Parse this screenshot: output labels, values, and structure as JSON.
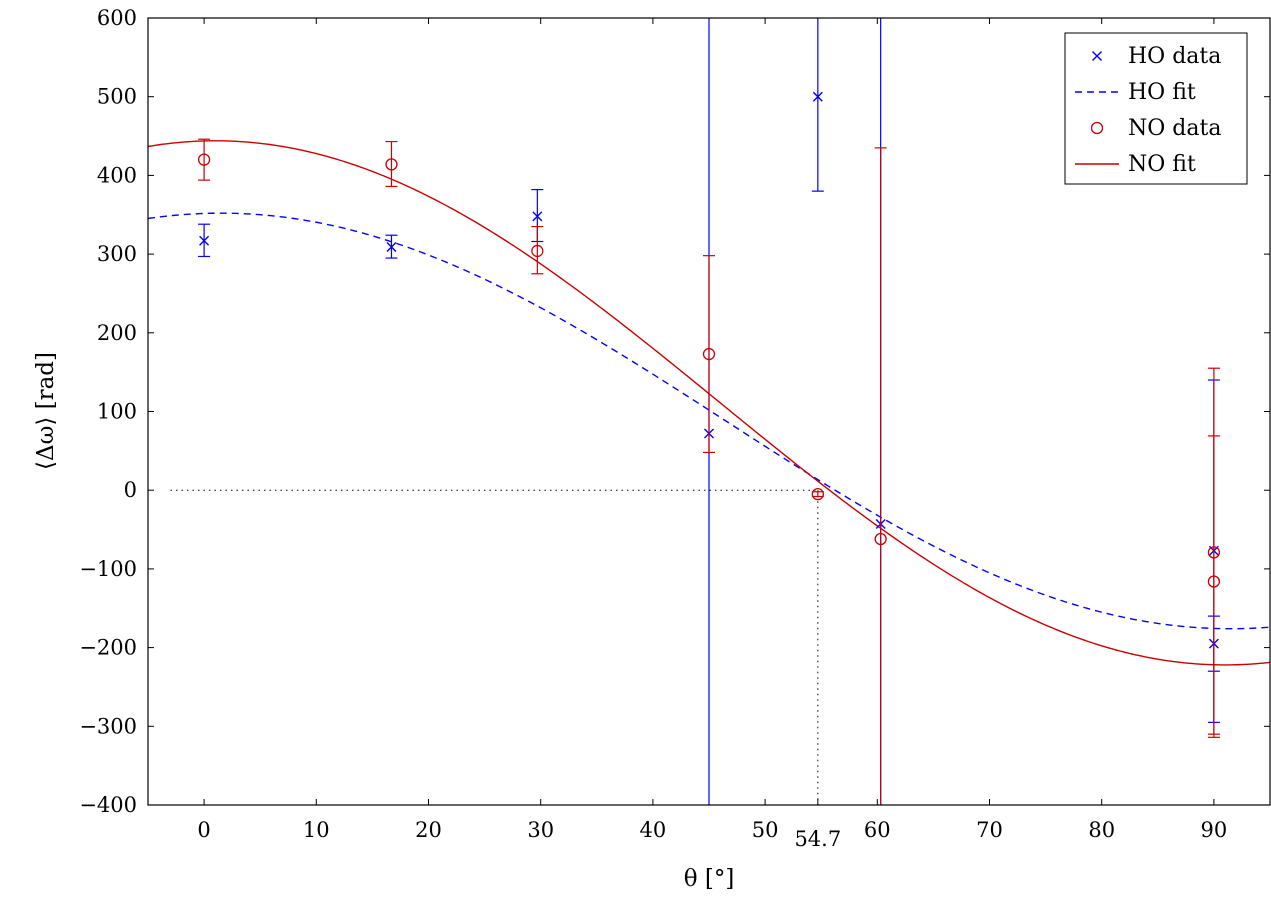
{
  "chart_data": {
    "type": "scatter",
    "xlabel": "θ [°]",
    "ylabel": "⟨Δω⟩ [rad]",
    "xlim": [
      -5,
      95
    ],
    "ylim": [
      -400,
      600
    ],
    "x_ticks": [
      "0",
      "10",
      "20",
      "30",
      "40",
      "50",
      "60",
      "70",
      "80",
      "90"
    ],
    "extra_x_tick": "54.7",
    "y_ticks": [
      "−400",
      "−300",
      "−200",
      "−100",
      "0",
      "100",
      "200",
      "300",
      "400",
      "500",
      "600"
    ],
    "grid": false,
    "legend_position": "top-right",
    "reference_lines": {
      "y_zero_until_x": 54.7,
      "x_magic_angle": 54.7
    },
    "series": [
      {
        "name": "HO data",
        "kind": "data",
        "marker": "cross",
        "color": "#0000ff",
        "points": [
          {
            "x": 0,
            "y": 317,
            "ylow": 297,
            "yhigh": 338
          },
          {
            "x": 16.7,
            "y": 309,
            "ylow": 295,
            "yhigh": 324
          },
          {
            "x": 29.7,
            "y": 348,
            "ylow": 316,
            "yhigh": 382
          },
          {
            "x": 45,
            "y": 72,
            "ylow": -400,
            "yhigh": 600
          },
          {
            "x": 54.7,
            "y": 500,
            "ylow": 380,
            "yhigh": 600
          },
          {
            "x": 60.3,
            "y": -43,
            "ylow": -400,
            "yhigh": 600
          },
          {
            "x": 90,
            "y": -77,
            "ylow": -295,
            "yhigh": 140
          },
          {
            "x": 90,
            "y": -195,
            "ylow": -230,
            "yhigh": -160
          }
        ]
      },
      {
        "name": "HO fit",
        "kind": "fit",
        "style": "dashed",
        "color": "#0000ff",
        "model": "A + B*cos(2*(θ−θ0))",
        "params": {
          "A": 88,
          "B": 264,
          "theta0": 1.5
        }
      },
      {
        "name": "NO data",
        "kind": "data",
        "marker": "circle",
        "color": "#cc0000",
        "points": [
          {
            "x": 0,
            "y": 420,
            "ylow": 394,
            "yhigh": 446
          },
          {
            "x": 16.7,
            "y": 414,
            "ylow": 386,
            "yhigh": 443
          },
          {
            "x": 29.7,
            "y": 304,
            "ylow": 275,
            "yhigh": 335
          },
          {
            "x": 45,
            "y": 173,
            "ylow": 48,
            "yhigh": 298
          },
          {
            "x": 54.7,
            "y": -5,
            "ylow": -8,
            "yhigh": -2
          },
          {
            "x": 60.3,
            "y": -62,
            "ylow": -400,
            "yhigh": 435
          },
          {
            "x": 90,
            "y": -79,
            "ylow": -310,
            "yhigh": 155
          },
          {
            "x": 90,
            "y": -116,
            "ylow": -314,
            "yhigh": 69
          }
        ]
      },
      {
        "name": "NO fit",
        "kind": "fit",
        "style": "solid",
        "color": "#cc0000",
        "model": "A + B*cos(2*(θ−θ0))",
        "params": {
          "A": 111,
          "B": 333,
          "theta0": 1
        }
      }
    ]
  }
}
